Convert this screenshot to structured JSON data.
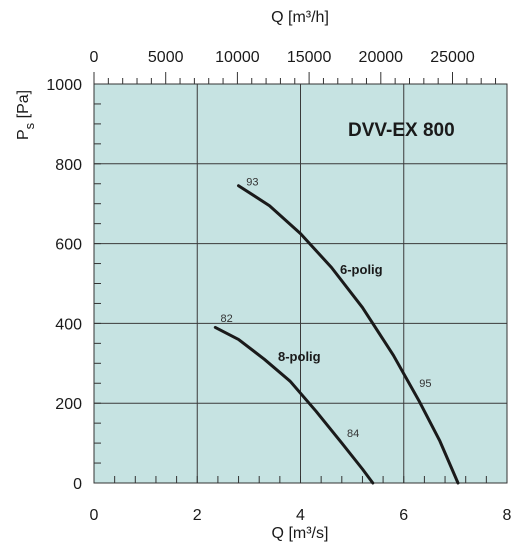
{
  "chart_data": {
    "type": "line",
    "title": "DVV-EX 800",
    "xlabel": "Q [m³/s]",
    "x2label": "Q [m³/h]",
    "ylabel_main": "P",
    "ylabel_sub": "s",
    "ylabel_unit": "[Pa]",
    "xlim": [
      0,
      8
    ],
    "ylim": [
      0,
      1000
    ],
    "x2lim": [
      0,
      28800
    ],
    "x_ticks": [
      0,
      2,
      4,
      6,
      8
    ],
    "x_tick_labels": [
      "0",
      "2",
      "4",
      "6",
      "8"
    ],
    "y_ticks": [
      0,
      200,
      400,
      600,
      800,
      1000
    ],
    "y_tick_labels": [
      "0",
      "200",
      "400",
      "600",
      "800",
      "1000"
    ],
    "x2_ticks": [
      0,
      5000,
      10000,
      15000,
      20000,
      25000
    ],
    "x2_tick_labels": [
      "0",
      "5000",
      "10000",
      "15000",
      "20000",
      "25000"
    ],
    "grid": true,
    "background": "#c6e3e2",
    "series_color": "#1a1a1a",
    "series": [
      {
        "name": "6-polig",
        "x": [
          2.8,
          3.4,
          4.0,
          4.6,
          5.2,
          5.8,
          6.3,
          6.7,
          7.05
        ],
        "y": [
          745,
          695,
          625,
          540,
          440,
          320,
          205,
          105,
          0
        ],
        "point_labels": [
          {
            "x": 2.95,
            "y": 745,
            "text": "93"
          },
          {
            "x": 6.3,
            "y": 240,
            "text": "95"
          }
        ]
      },
      {
        "name": "8-polig",
        "x": [
          2.35,
          2.8,
          3.3,
          3.8,
          4.3,
          4.8,
          5.2,
          5.4
        ],
        "y": [
          390,
          360,
          310,
          255,
          180,
          100,
          35,
          0
        ],
        "point_labels": [
          {
            "x": 2.45,
            "y": 403,
            "text": "82"
          },
          {
            "x": 4.9,
            "y": 115,
            "text": "84"
          }
        ]
      }
    ]
  }
}
